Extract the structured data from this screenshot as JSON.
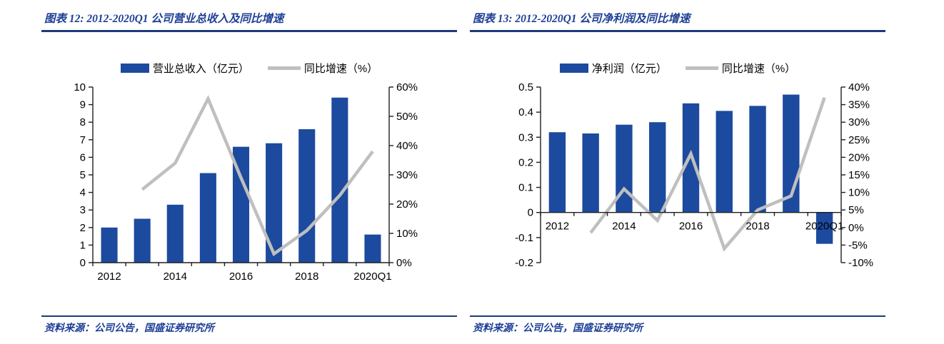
{
  "colors": {
    "bar": "#1c4a9e",
    "line": "#bfbfbf",
    "navy": "#1e3a7a",
    "title_text": "#1e3f96",
    "axis": "#1f1f1f",
    "axis_text": "#000000"
  },
  "panels": [
    {
      "title": "图表 12: 2012-2020Q1 公司营业总收入及同比增速",
      "legend": [
        {
          "label": "营业总收入（亿元）",
          "swatch": "bar-swatch"
        },
        {
          "label": "同比增速（%）",
          "swatch": "line-swatch"
        }
      ],
      "source": "资料来源：公司公告，国盛证券研究所"
    },
    {
      "title": "图表 13: 2012-2020Q1 公司净利润及同比增速",
      "legend": [
        {
          "label": "净利润（亿元）",
          "swatch": "bar-swatch"
        },
        {
          "label": "同比增速（%）",
          "swatch": "line-swatch"
        }
      ],
      "source": "资料来源：公司公告，国盛证券研究所"
    }
  ],
  "chart_data": [
    {
      "type": "combo bar+line",
      "title": "2012-2020Q1 公司营业总收入及同比增速",
      "categories": [
        "2012",
        "2013",
        "2014",
        "2015",
        "2016",
        "2017",
        "2018",
        "2019",
        "2020Q1"
      ],
      "series": [
        {
          "name": "营业总收入（亿元）",
          "type": "bar",
          "axis": "left",
          "values": [
            2.0,
            2.5,
            3.3,
            5.1,
            6.6,
            6.8,
            7.6,
            9.4,
            1.6
          ]
        },
        {
          "name": "同比增速（%）",
          "type": "line",
          "axis": "right",
          "values": [
            null,
            25,
            34,
            56,
            29,
            3,
            11,
            23,
            38
          ]
        }
      ],
      "left_axis": {
        "min": 0,
        "max": 10,
        "step": 1,
        "suffix": ""
      },
      "right_axis": {
        "min": 0,
        "max": 60,
        "step": 10,
        "suffix": "%"
      },
      "x_label_every": 2,
      "grid": false,
      "legend_position": "top"
    },
    {
      "type": "combo bar+line",
      "title": "2012-2020Q1 公司净利润及同比增速",
      "categories": [
        "2012",
        "2013",
        "2014",
        "2015",
        "2016",
        "2017",
        "2018",
        "2019",
        "2020Q1"
      ],
      "series": [
        {
          "name": "净利润（亿元）",
          "type": "bar",
          "axis": "left",
          "values": [
            0.32,
            0.315,
            0.35,
            0.36,
            0.435,
            0.405,
            0.425,
            0.47,
            -0.125
          ]
        },
        {
          "name": "同比增速（%）",
          "type": "line",
          "axis": "right",
          "values": [
            null,
            -1.5,
            11,
            2,
            21,
            -6,
            5,
            9,
            37
          ]
        }
      ],
      "left_axis": {
        "min": -0.2,
        "max": 0.5,
        "step": 0.1,
        "suffix": ""
      },
      "right_axis": {
        "min": -10,
        "max": 40,
        "step": 5,
        "suffix": "%"
      },
      "x_label_every": 2,
      "grid": false,
      "legend_position": "top"
    }
  ]
}
